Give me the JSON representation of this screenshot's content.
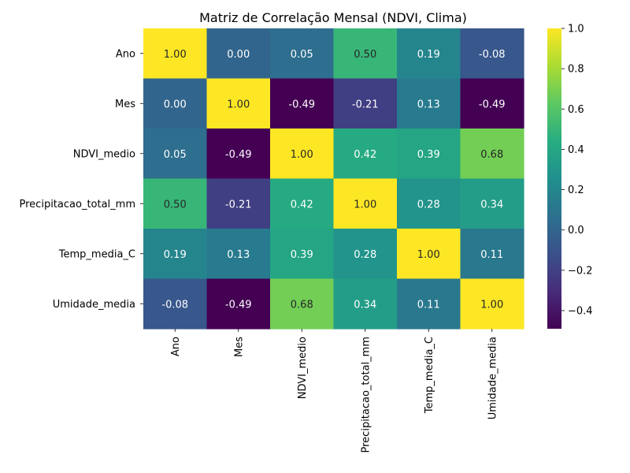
{
  "chart_data": {
    "type": "heatmap",
    "title": "Matriz de Correlação Mensal (NDVI, Clima)",
    "rows": [
      "Ano",
      "Mes",
      "NDVI_medio",
      "Precipitacao_total_mm",
      "Temp_media_C",
      "Umidade_media"
    ],
    "columns": [
      "Ano",
      "Mes",
      "NDVI_medio",
      "Precipitacao_total_mm",
      "Temp_media_C",
      "Umidade_media"
    ],
    "values": [
      [
        1.0,
        0.0,
        0.05,
        0.5,
        0.19,
        -0.08
      ],
      [
        0.0,
        1.0,
        -0.49,
        -0.21,
        0.13,
        -0.49
      ],
      [
        0.05,
        -0.49,
        1.0,
        0.42,
        0.39,
        0.68
      ],
      [
        0.5,
        -0.21,
        0.42,
        1.0,
        0.28,
        0.34
      ],
      [
        0.19,
        0.13,
        0.39,
        0.28,
        1.0,
        0.11
      ],
      [
        -0.08,
        -0.49,
        0.68,
        0.34,
        0.11,
        1.0
      ]
    ],
    "value_format": "0.00",
    "colormap": "viridis",
    "colorbar": {
      "vmin": -0.49,
      "vmax": 1.0,
      "ticks": [
        -0.4,
        -0.2,
        0.0,
        0.2,
        0.4,
        0.6,
        0.8,
        1.0
      ],
      "tick_labels": [
        "−0.4",
        "−0.2",
        "0.0",
        "0.2",
        "0.4",
        "0.6",
        "0.8",
        "1.0"
      ]
    },
    "grid": false
  }
}
